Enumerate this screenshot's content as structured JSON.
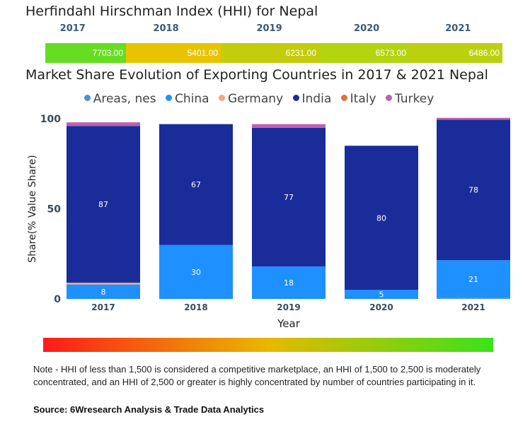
{
  "hhi": {
    "title": "Herfindahl Hirschman Index (HHI) for Nepal",
    "entries": [
      {
        "year": "2017",
        "value": "7703.00",
        "color": "#66dd22"
      },
      {
        "year": "2018",
        "value": "5401.00",
        "color": "#e8c400"
      },
      {
        "year": "2019",
        "value": "6231.00",
        "color": "#c4cc0c"
      },
      {
        "year": "2020",
        "value": "6573.00",
        "color": "#b4d40e"
      },
      {
        "year": "2021",
        "value": "6486.00",
        "color": "#bcd10e"
      }
    ]
  },
  "chart_data": {
    "type": "bar",
    "stacked": true,
    "title": "Market Share Evolution of Exporting Countries in 2017 & 2021 Nepal",
    "xlabel": "Year",
    "ylabel": "Share(% Value Share)",
    "ylim": [
      0,
      100
    ],
    "yticks": [
      0,
      50,
      100
    ],
    "categories": [
      "2017",
      "2018",
      "2019",
      "2020",
      "2021"
    ],
    "legend_position": "top",
    "series": [
      {
        "name": "Areas, nes",
        "color": "#4f8fe0",
        "values": [
          0,
          0,
          0,
          0,
          0.5
        ]
      },
      {
        "name": "China",
        "color": "#1e90ff",
        "values": [
          8,
          30,
          18,
          5,
          21
        ]
      },
      {
        "name": "Germany",
        "color": "#f4a582",
        "values": [
          1,
          0,
          0,
          0,
          0
        ]
      },
      {
        "name": "India",
        "color": "#1a2c99",
        "values": [
          87,
          67,
          77,
          80,
          78
        ]
      },
      {
        "name": "Italy",
        "color": "#e26f3e",
        "values": [
          0,
          0,
          0,
          0,
          0
        ]
      },
      {
        "name": "Turkey",
        "color": "#c060b0",
        "values": [
          2,
          0,
          2,
          0,
          1
        ]
      }
    ],
    "data_labels": [
      {
        "category": "2017",
        "series": "China",
        "text": "8"
      },
      {
        "category": "2017",
        "series": "India",
        "text": "87"
      },
      {
        "category": "2018",
        "series": "China",
        "text": "30"
      },
      {
        "category": "2018",
        "series": "India",
        "text": "67"
      },
      {
        "category": "2019",
        "series": "China",
        "text": "18"
      },
      {
        "category": "2019",
        "series": "India",
        "text": "77"
      },
      {
        "category": "2020",
        "series": "China",
        "text": "5"
      },
      {
        "category": "2020",
        "series": "India",
        "text": "80"
      },
      {
        "category": "2021",
        "series": "China",
        "text": "21"
      },
      {
        "category": "2021",
        "series": "India",
        "text": "78"
      }
    ]
  },
  "note": "Note - HHI of less than 1,500 is considered a competitive marketplace, an HHI of 1,500 to 2,500 is moderately concentrated, and an HHI of 2,500 or greater is highly concentrated by number of countries participating in it.",
  "source": "Source: 6Wresearch Analysis & Trade Data Analytics"
}
